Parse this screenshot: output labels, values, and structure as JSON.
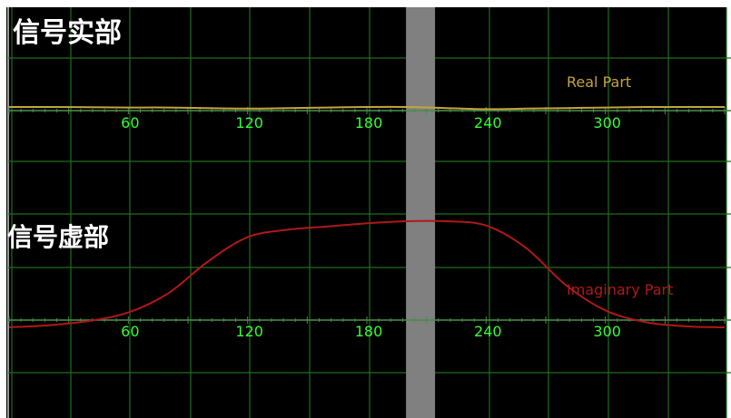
{
  "titles": {
    "real": "信号实部",
    "imag": "信号虚部"
  },
  "colors": {
    "background": "#000000",
    "grid": "#1f6e1f",
    "tick_text": "#33ff33",
    "axis": "#4a8a4a",
    "real_series": "#c4a43c",
    "imag_series": "#b01818",
    "cursor": "#808080",
    "title_text": "#ffffff"
  },
  "chart_data": [
    {
      "type": "line",
      "name": "real-part-plot",
      "x_ticks": [
        60,
        120,
        180,
        240,
        300
      ],
      "xlim": [
        0,
        360
      ],
      "ylim": [
        -1,
        1
      ],
      "grid": true,
      "cursor_x": 207,
      "series": [
        {
          "name": "Real Part",
          "x": [
            0,
            20,
            40,
            60,
            80,
            100,
            120,
            140,
            160,
            180,
            200,
            220,
            240,
            260,
            280,
            300,
            320,
            340,
            360
          ],
          "y": [
            0.0,
            0.0,
            -0.005,
            -0.01,
            -0.01,
            -0.02,
            -0.03,
            -0.02,
            -0.01,
            0.0,
            0.0,
            -0.02,
            -0.04,
            -0.03,
            -0.02,
            -0.01,
            0.0,
            0.0,
            0.0
          ]
        }
      ]
    },
    {
      "type": "line",
      "name": "imaginary-part-plot",
      "x_ticks": [
        60,
        120,
        180,
        240,
        300
      ],
      "xlim": [
        0,
        360
      ],
      "ylim": [
        -0.2,
        1.2
      ],
      "grid": true,
      "cursor_x": 207,
      "series": [
        {
          "name": "Imaginary Part",
          "x": [
            0,
            20,
            40,
            60,
            80,
            100,
            120,
            140,
            160,
            180,
            200,
            220,
            240,
            260,
            280,
            300,
            320,
            340,
            360
          ],
          "y": [
            0.0,
            0.02,
            0.06,
            0.14,
            0.32,
            0.62,
            0.85,
            0.92,
            0.95,
            0.98,
            1.0,
            1.0,
            0.96,
            0.75,
            0.4,
            0.16,
            0.05,
            0.01,
            0.0
          ]
        }
      ]
    }
  ]
}
